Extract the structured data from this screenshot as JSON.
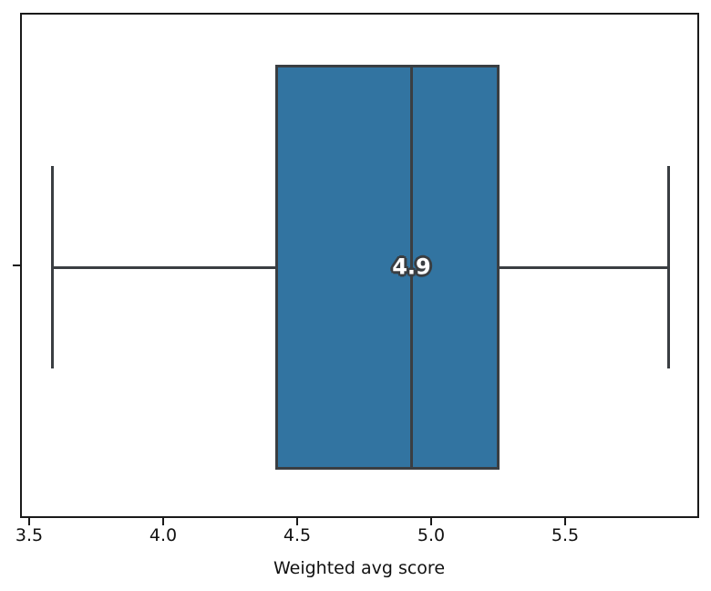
{
  "chart_data": {
    "type": "boxplot",
    "orientation": "horizontal",
    "title": "",
    "xlabel": "Weighted avg score",
    "ylabel": "",
    "xlim": [
      3.466,
      6.0
    ],
    "x_ticks": [
      3.5,
      4.0,
      4.5,
      5.0,
      5.5
    ],
    "x_tick_labels": [
      "3.5",
      "4.0",
      "4.5",
      "5.0",
      "5.5"
    ],
    "grid": false,
    "legend": null,
    "series": [
      {
        "name": "weighted-avg-score",
        "whisker_low": 3.58,
        "q1": 4.41,
        "median": 4.92,
        "q3": 5.25,
        "whisker_high": 5.88,
        "median_label": "4.9",
        "outliers": []
      }
    ],
    "colors": {
      "box_fill": "#3274a1",
      "line": "#3a3e42",
      "spine": "#1a1a1a",
      "median_text": "#ffffff",
      "tick_text": "#111111"
    }
  }
}
